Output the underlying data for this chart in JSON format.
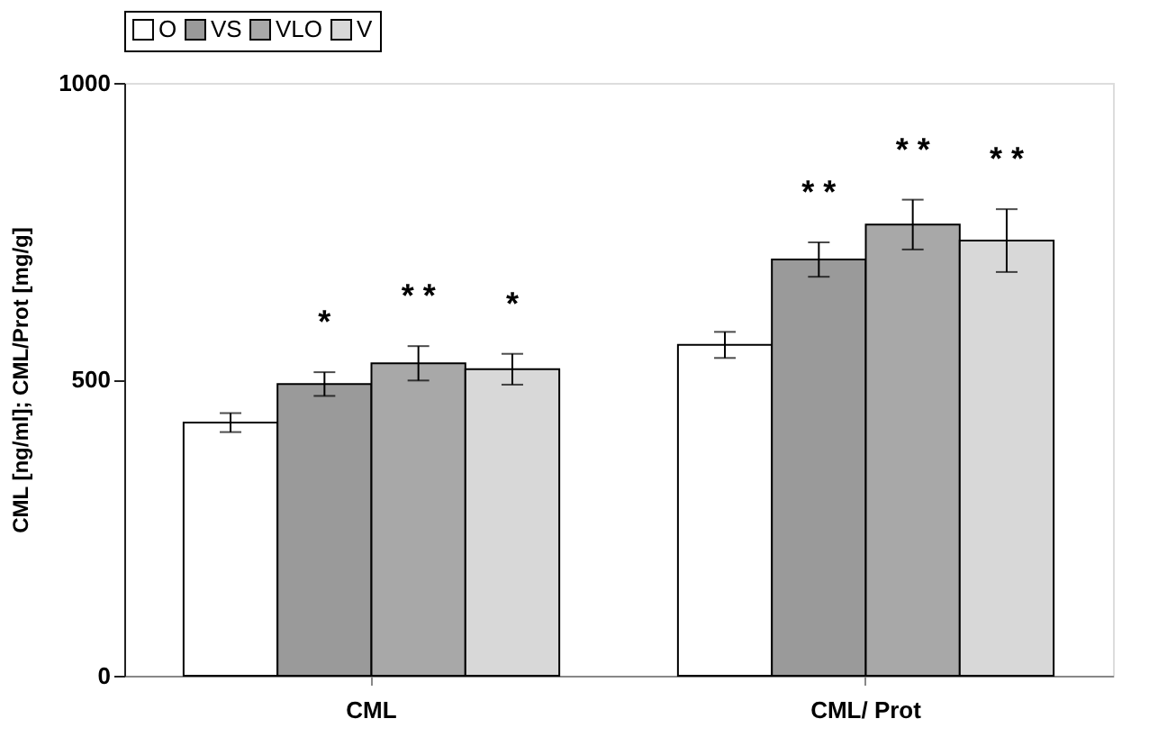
{
  "chart_data": {
    "type": "bar",
    "ylabel": "CML [ng/ml]; CML/Prot [mg/g]",
    "categories": [
      "CML",
      "CML/ Prot"
    ],
    "series": [
      {
        "name": "O",
        "color": "#ffffff",
        "values": [
          427,
          558
        ],
        "errors": [
          16,
          22
        ]
      },
      {
        "name": "VS",
        "color": "#9a9a9a",
        "values": [
          492,
          702
        ],
        "errors": [
          20,
          29
        ],
        "value_labels": [
          "*",
          "* *"
        ]
      },
      {
        "name": "VLO",
        "color": "#a8a8a8",
        "values": [
          527,
          761
        ],
        "errors": [
          29,
          42
        ],
        "value_labels": [
          "* *",
          "* *"
        ]
      },
      {
        "name": "V",
        "color": "#d8d8d8",
        "values": [
          517,
          734
        ],
        "errors": [
          26,
          53
        ],
        "value_labels": [
          "*",
          "* *"
        ]
      }
    ],
    "ylim": [
      0,
      1000
    ],
    "yticks": [
      0,
      500,
      1000
    ],
    "grid": false,
    "legend": "top"
  }
}
